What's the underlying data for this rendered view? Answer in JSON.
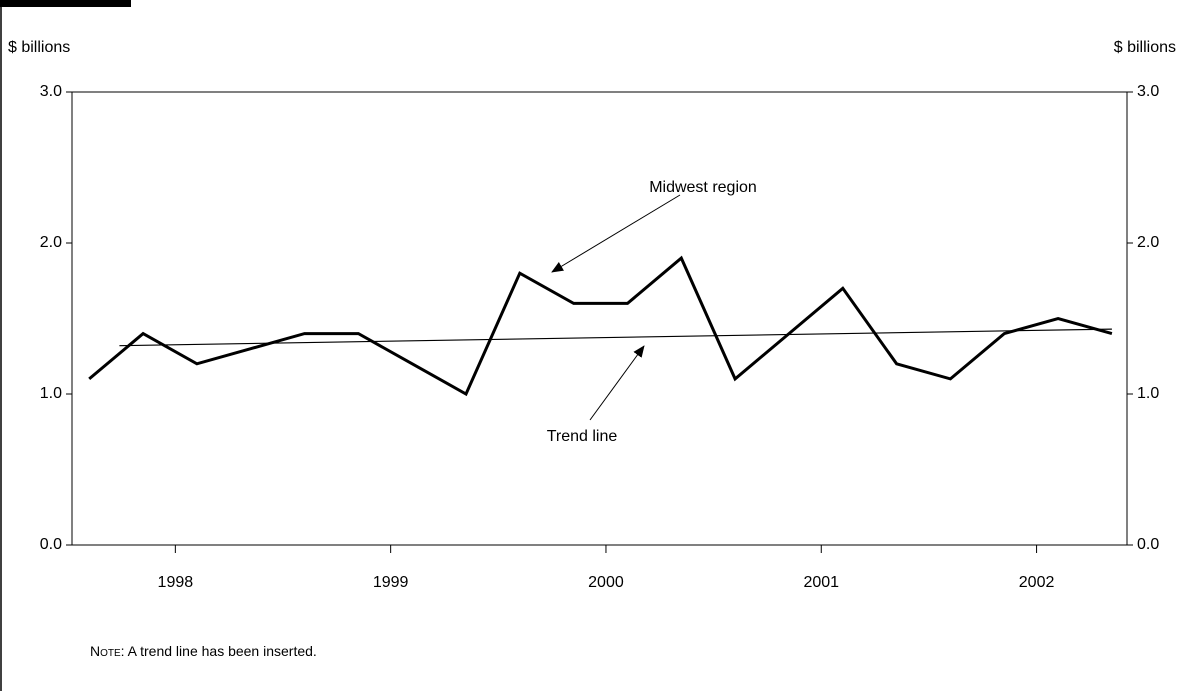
{
  "chart_data": {
    "type": "line",
    "y_label": "$ billions",
    "y2_label": "$ billions",
    "note_label": "Note",
    "note_text": ": A trend line has been inserted.",
    "xlim": [
      1997.52,
      2002.42
    ],
    "xticks": [
      1998,
      1999,
      2000,
      2001,
      2002
    ],
    "ylim": [
      0,
      3
    ],
    "y2lim": [
      0,
      3
    ],
    "yticks": [
      {
        "value": 0,
        "label": "0.0"
      },
      {
        "value": 1,
        "label": "1.0"
      },
      {
        "value": 2,
        "label": "2.0"
      },
      {
        "value": 3,
        "label": "3.0"
      }
    ],
    "y2ticks": [
      {
        "value": 0,
        "label": "0.0"
      },
      {
        "value": 1,
        "label": "1.0"
      },
      {
        "value": 2,
        "label": "2.0"
      },
      {
        "value": 3,
        "label": "3.0"
      }
    ],
    "series": [
      {
        "name": "Midwest region",
        "color": "#000000",
        "x": [
          1997.6,
          1997.85,
          1998.1,
          1998.35,
          1998.6,
          1998.85,
          1999.1,
          1999.35,
          1999.6,
          1999.85,
          2000.1,
          2000.35,
          2000.6,
          2000.85,
          2001.1,
          2001.35,
          2001.6,
          2001.85,
          2002.1,
          2002.35
        ],
        "values": [
          1.1,
          1.4,
          1.2,
          1.3,
          1.4,
          1.4,
          1.2,
          1.0,
          1.8,
          1.6,
          1.6,
          1.9,
          1.1,
          1.4,
          1.7,
          1.2,
          1.1,
          1.4,
          1.5,
          1.4
        ]
      },
      {
        "name": "Trend line",
        "color": "#000000",
        "x": [
          1997.74,
          2002.35
        ],
        "values": [
          1.32,
          1.43
        ]
      }
    ]
  }
}
